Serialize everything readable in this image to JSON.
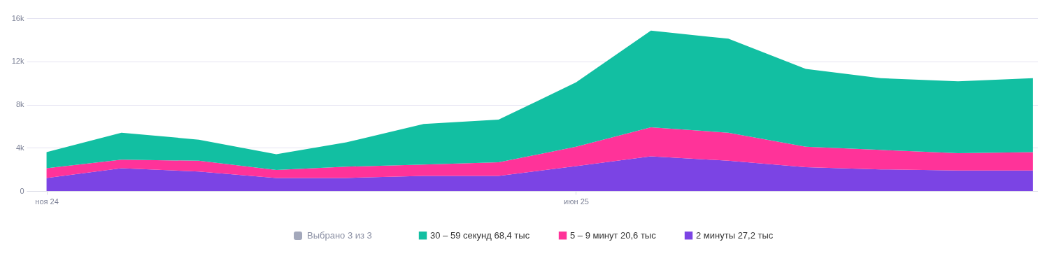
{
  "chart_data": {
    "type": "area",
    "stacked": true,
    "x": [
      "2024-11",
      "2024-12",
      "2025-01",
      "2025-02",
      "2025-03",
      "2025-04",
      "2025-05",
      "2025-06",
      "2025-07",
      "2025-08",
      "2025-09",
      "2025-10",
      "2025-11",
      "2025-12"
    ],
    "xlim": [
      "2024-10-24",
      "2025-12-03"
    ],
    "xticks": [
      {
        "value": "2024-11",
        "label": "ноя 24"
      },
      {
        "value": "2025-06",
        "label": "июн 25"
      }
    ],
    "ylim": [
      0,
      16000
    ],
    "yticks": [
      0,
      {
        "value": 4000,
        "label": "4k"
      },
      {
        "value": 8000,
        "label": "8k"
      },
      {
        "value": 12000,
        "label": "12k"
      },
      {
        "value": 16000,
        "label": "16k"
      }
    ],
    "series": [
      {
        "name": "2 минуты 27,2 тыс",
        "color": "#7b44e4",
        "values": [
          1200,
          2100,
          1800,
          1200,
          1200,
          1400,
          1400,
          2300,
          3200,
          2800,
          2200,
          2000,
          1900,
          1900
        ]
      },
      {
        "name": "5 – 9 минут 20,6 тыс",
        "color": "#ff3399",
        "values": [
          900,
          800,
          1000,
          750,
          1050,
          1050,
          1250,
          1800,
          2700,
          2600,
          1900,
          1800,
          1600,
          1700
        ]
      },
      {
        "name": "30 – 59 секунд 68,4 тыс",
        "color": "#12bfa2",
        "values": [
          1500,
          2500,
          1950,
          1450,
          2250,
          3750,
          3950,
          5950,
          8950,
          8700,
          7200,
          6650,
          6650,
          6850
        ]
      }
    ],
    "grid": "y",
    "legend": "bottom",
    "annotations": [
      "Выбрано 3 из 3"
    ]
  }
}
